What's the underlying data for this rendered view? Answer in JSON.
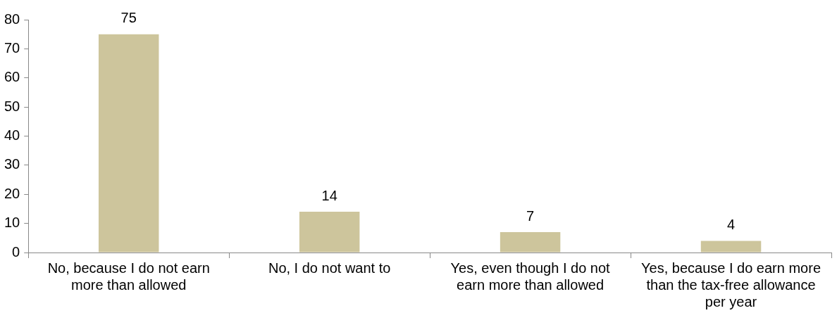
{
  "chart_data": {
    "type": "bar",
    "categories": [
      "No, because I do not earn more than allowed",
      "No, I do not want to",
      "Yes, even though I do not earn more than allowed",
      "Yes, because I do earn more than the tax-free allowance per year"
    ],
    "values": [
      75,
      14,
      7,
      4
    ],
    "color": "#cdc59c",
    "ylim": [
      0,
      80
    ],
    "yticks": [
      0,
      10,
      20,
      30,
      40,
      50,
      60,
      70,
      80
    ],
    "grid": false,
    "legend": false,
    "data_labels": true
  }
}
